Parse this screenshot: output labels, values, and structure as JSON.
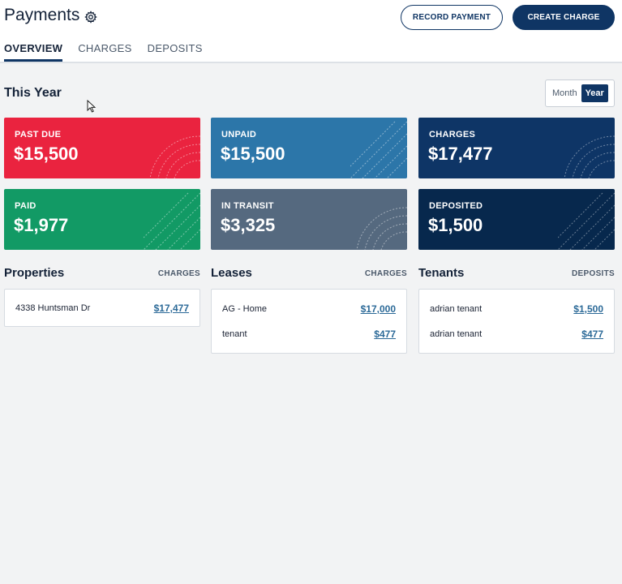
{
  "header": {
    "title": "Payments",
    "record_payment": "RECORD PAYMENT",
    "create_charge": "CREATE CHARGE"
  },
  "tabs": [
    {
      "label": "OVERVIEW",
      "active": true
    },
    {
      "label": "CHARGES",
      "active": false
    },
    {
      "label": "DEPOSITS",
      "active": false
    }
  ],
  "period": {
    "title": "This Year",
    "toggle": {
      "month": "Month",
      "year": "Year",
      "selected": "Year"
    }
  },
  "cards": {
    "past_due": {
      "label": "PAST DUE",
      "value": "$15,500",
      "color": "#ea233f"
    },
    "unpaid": {
      "label": "UNPAID",
      "value": "$15,500",
      "color": "#2c76a9"
    },
    "charges": {
      "label": "CHARGES",
      "value": "$17,477",
      "color": "#0e3566"
    },
    "paid": {
      "label": "PAID",
      "value": "$1,977",
      "color": "#129a65"
    },
    "in_transit": {
      "label": "IN TRANSIT",
      "value": "$3,325",
      "color": "#55697f"
    },
    "deposited": {
      "label": "DEPOSITED",
      "value": "$1,500",
      "color": "#07284d"
    }
  },
  "properties": {
    "title": "Properties",
    "tag": "CHARGES",
    "rows": [
      {
        "name": "4338 Huntsman Dr",
        "amount": "$17,477"
      }
    ]
  },
  "leases": {
    "title": "Leases",
    "tag": "CHARGES",
    "rows": [
      {
        "name": "AG - Home",
        "amount": "$17,000"
      },
      {
        "name": "tenant",
        "amount": "$477"
      }
    ]
  },
  "tenants": {
    "title": "Tenants",
    "tag": "DEPOSITS",
    "rows": [
      {
        "name": "adrian tenant",
        "amount": "$1,500"
      },
      {
        "name": "adrian tenant",
        "amount": "$477"
      }
    ]
  }
}
